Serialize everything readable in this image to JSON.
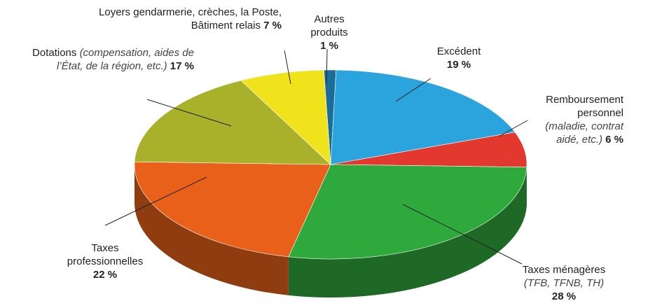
{
  "chart_data": {
    "type": "pie3d",
    "categories": [
      "Autres produits",
      "Excédent",
      "Remboursement personnel",
      "Taxes ménagères",
      "Taxes professionnelles",
      "Dotations",
      "Loyers gendarmerie, crèches, la Poste, Bâtiment relais"
    ],
    "category_details": [
      null,
      null,
      "(maladie, contrat aidé, etc.)",
      "(TFB, TFNB, TH)",
      null,
      "(compensation, aides de l’État, de la région, etc.)",
      null
    ],
    "values": [
      1,
      19,
      6,
      28,
      22,
      17,
      7
    ],
    "value_labels": [
      "1 %",
      "19 %",
      "6 %",
      "28 %",
      "22 %",
      "17 %",
      "7 %"
    ],
    "colors": [
      "#1b6d99",
      "#2ba4dd",
      "#e2382e",
      "#2ea93b",
      "#e9601b",
      "#a9b12b",
      "#f1e31b"
    ]
  }
}
